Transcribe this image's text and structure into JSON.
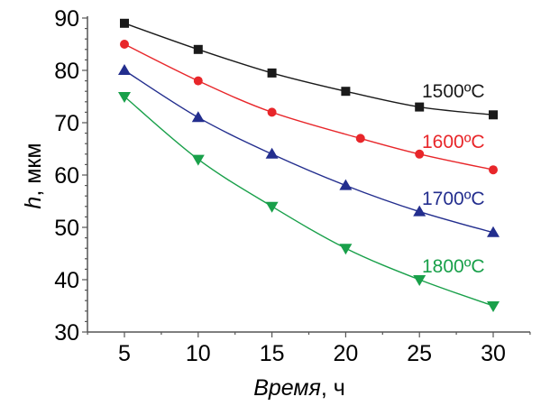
{
  "chart_data": {
    "type": "line",
    "title": "",
    "xlabel_italic": "Время",
    "xlabel_rest": ", ч",
    "ylabel_italic": "h",
    "ylabel_rest": ", мкм",
    "xlim": [
      2.5,
      32.5
    ],
    "ylim": [
      30,
      90
    ],
    "xticks": [
      5,
      10,
      15,
      20,
      25,
      30
    ],
    "yticks": [
      30,
      40,
      50,
      60,
      70,
      80,
      90
    ],
    "x_minor_step": 2.5,
    "y_minor_step": 2,
    "grid": false,
    "legend": "inline labels at right end of each series",
    "series": [
      {
        "name": "1500ºC",
        "color": "#1a1a1a",
        "marker": "square",
        "x": [
          5,
          10,
          15,
          20,
          25,
          30
        ],
        "y": [
          89,
          84,
          79.5,
          76,
          73,
          71.5
        ]
      },
      {
        "name": "1600ºC",
        "color": "#e8262a",
        "marker": "circle",
        "x": [
          5,
          10,
          15,
          21,
          25,
          30
        ],
        "y": [
          85,
          78,
          72,
          67,
          64,
          61
        ]
      },
      {
        "name": "1700ºC",
        "color": "#232e8e",
        "marker": "triangle-up",
        "x": [
          5,
          10,
          15,
          20,
          25,
          30
        ],
        "y": [
          80,
          71,
          64,
          58,
          53,
          49
        ]
      },
      {
        "name": "1800ºC",
        "color": "#19a04a",
        "marker": "triangle-down",
        "x": [
          5,
          10,
          15,
          20,
          25,
          30
        ],
        "y": [
          75,
          63,
          54,
          46,
          40,
          35
        ]
      }
    ]
  }
}
